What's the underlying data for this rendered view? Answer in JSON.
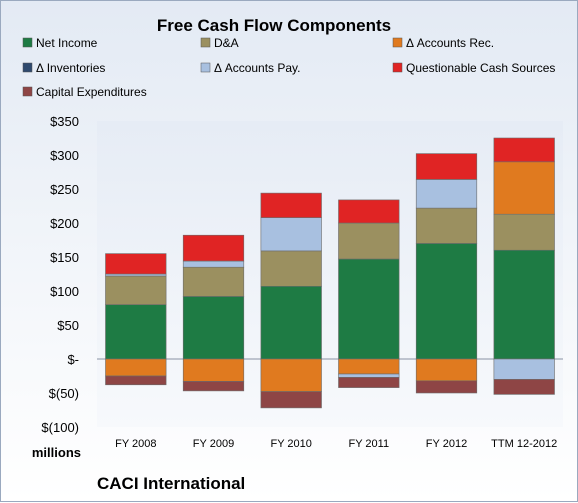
{
  "chart_data": {
    "type": "bar",
    "stacked": true,
    "title": "Free Cash Flow Components",
    "unit_label": "millions",
    "company": "CACI International",
    "categories": [
      "FY 2008",
      "FY 2009",
      "FY 2010",
      "FY 2011",
      "FY 2012",
      "TTM 12-2012"
    ],
    "ylim": [
      -100,
      350
    ],
    "yticks": [
      -100,
      -50,
      0,
      50,
      100,
      150,
      200,
      250,
      300,
      350
    ],
    "ytick_labels": [
      "$(100)",
      "$(50)",
      "$-",
      "$50",
      "$100",
      "$150",
      "$200",
      "$250",
      "$300",
      "$350"
    ],
    "grid": false,
    "legend_position": "top",
    "series": [
      {
        "name": "Net Income",
        "color": "#1e7b44",
        "values": [
          80,
          92,
          107,
          147,
          170,
          160
        ]
      },
      {
        "name": "D&A",
        "color": "#9b9060",
        "values": [
          42,
          43,
          52,
          53,
          52,
          53
        ]
      },
      {
        "name": "Δ Accounts Rec.",
        "color": "#e07a1f",
        "values": [
          -25,
          -33,
          -48,
          -22,
          -32,
          77
        ]
      },
      {
        "name": "Δ Inventories",
        "color": "#2f4a6e",
        "values": [
          0,
          0,
          0,
          0,
          0,
          0
        ]
      },
      {
        "name": "Δ Accounts Pay.",
        "color": "#a8c0e0",
        "values": [
          3,
          9,
          49,
          -5,
          42,
          -30
        ]
      },
      {
        "name": "Questionable Cash Sources",
        "color": "#e02424",
        "values": [
          30,
          38,
          36,
          34,
          38,
          35
        ]
      },
      {
        "name": "Capital Expenditures",
        "color": "#8e4545",
        "values": [
          -13,
          -14,
          -24,
          -15,
          -18,
          -22
        ]
      }
    ]
  }
}
